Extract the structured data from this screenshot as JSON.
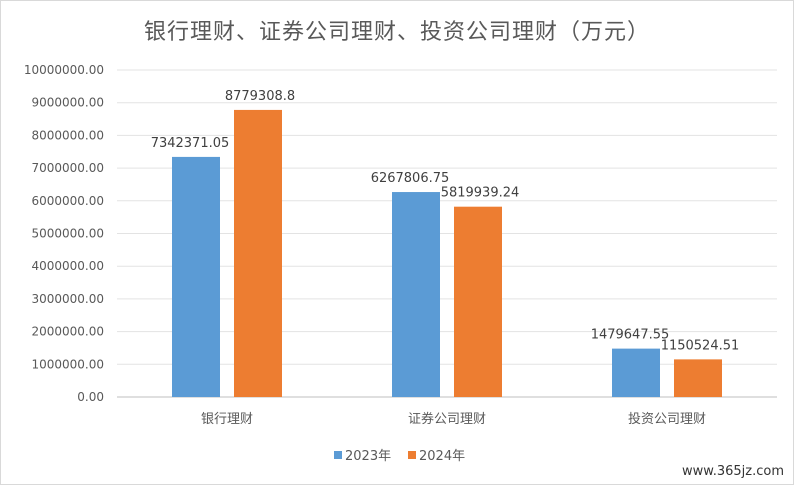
{
  "chart_data": {
    "type": "bar",
    "title": "银行理财、证券公司理财、投资公司理财（万元）",
    "categories": [
      "银行理财",
      "证券公司理财",
      "投资公司理财"
    ],
    "series": [
      {
        "name": "2023年",
        "color": "#5b9bd5",
        "values": [
          7342371.05,
          6267806.75,
          1479647.55
        ],
        "labels": [
          "7342371.05",
          "6267806.75",
          "1479647.55"
        ]
      },
      {
        "name": "2024年",
        "color": "#ed7d31",
        "values": [
          8779308.8,
          5819939.24,
          1150524.51
        ],
        "labels": [
          "8779308.8",
          "5819939.24",
          "1150524.51"
        ]
      }
    ],
    "ylim": [
      0,
      10000000
    ],
    "yticks": [
      "0.00",
      "1000000.00",
      "2000000.00",
      "3000000.00",
      "4000000.00",
      "5000000.00",
      "6000000.00",
      "7000000.00",
      "8000000.00",
      "9000000.00",
      "10000000.00"
    ],
    "grid": true,
    "legend": "bottom"
  },
  "watermark": "www.365jz.com"
}
